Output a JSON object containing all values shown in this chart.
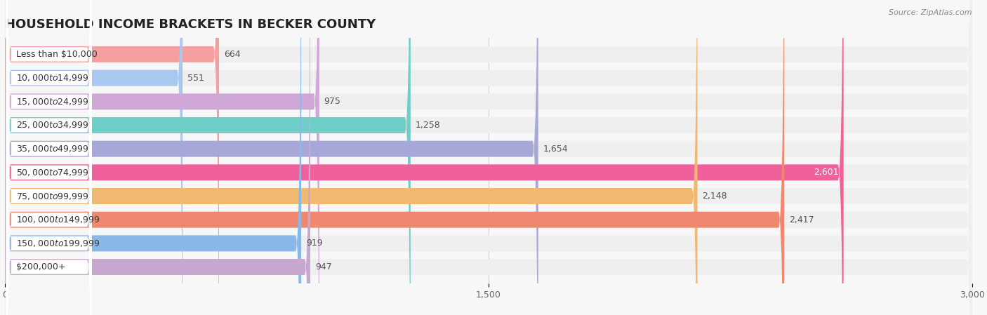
{
  "title": "HOUSEHOLD INCOME BRACKETS IN BECKER COUNTY",
  "source": "Source: ZipAtlas.com",
  "categories": [
    "Less than $10,000",
    "$10,000 to $14,999",
    "$15,000 to $24,999",
    "$25,000 to $34,999",
    "$35,000 to $49,999",
    "$50,000 to $74,999",
    "$75,000 to $99,999",
    "$100,000 to $149,999",
    "$150,000 to $199,999",
    "$200,000+"
  ],
  "values": [
    664,
    551,
    975,
    1258,
    1654,
    2601,
    2148,
    2417,
    919,
    947
  ],
  "colors": [
    "#F4A0A0",
    "#A8C8F0",
    "#D0A8D8",
    "#6ECEC8",
    "#A8A8D8",
    "#F0609A",
    "#F0B870",
    "#F08870",
    "#88B8E8",
    "#C8A8D0"
  ],
  "xlim": [
    0,
    3000
  ],
  "xticks": [
    0,
    1500,
    3000
  ],
  "background_color": "#f7f7f7",
  "bar_row_bg": "#efefef",
  "bar_height": 0.68,
  "title_fontsize": 13,
  "label_fontsize": 9,
  "value_fontsize": 9,
  "source_fontsize": 8
}
